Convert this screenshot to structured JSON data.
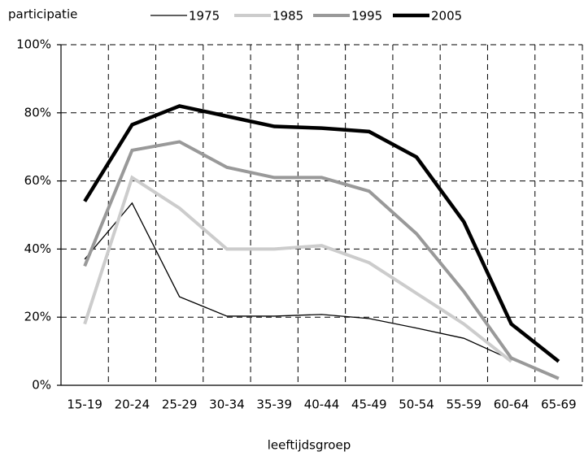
{
  "chart_data": {
    "type": "line",
    "y_label_top": "participatie",
    "x_label": "leeftijdsgroep",
    "categories": [
      "15-19",
      "20-24",
      "25-29",
      "30-34",
      "35-39",
      "40-44",
      "45-49",
      "50-54",
      "55-59",
      "60-64",
      "65-69"
    ],
    "series": [
      {
        "name": "1975",
        "color": "#000000",
        "width": 1.3,
        "values": [
          37,
          53.5,
          26,
          20.3,
          20.3,
          20.8,
          19.6,
          16.8,
          13.8,
          7.5,
          null
        ]
      },
      {
        "name": "1985",
        "color": "#cccccc",
        "width": 4,
        "values": [
          18,
          61,
          52,
          40,
          40,
          41,
          36,
          27,
          18,
          7,
          null
        ]
      },
      {
        "name": "1995",
        "color": "#999999",
        "width": 4,
        "values": [
          35,
          69,
          71.5,
          64,
          61,
          61,
          57,
          44.5,
          27.5,
          8,
          2
        ]
      },
      {
        "name": "2005",
        "color": "#000000",
        "width": 4.5,
        "values": [
          54,
          76.5,
          82,
          79,
          76,
          75.5,
          74.5,
          67,
          48,
          18,
          7
        ]
      }
    ],
    "ylim": [
      0,
      100
    ],
    "yticks": [
      {
        "value": 0,
        "label": "0%"
      },
      {
        "value": 20,
        "label": "20%"
      },
      {
        "value": 40,
        "label": "40%"
      },
      {
        "value": 60,
        "label": "60%"
      },
      {
        "value": 80,
        "label": "80%"
      },
      {
        "value": 100,
        "label": "100%"
      }
    ],
    "grid": true
  }
}
